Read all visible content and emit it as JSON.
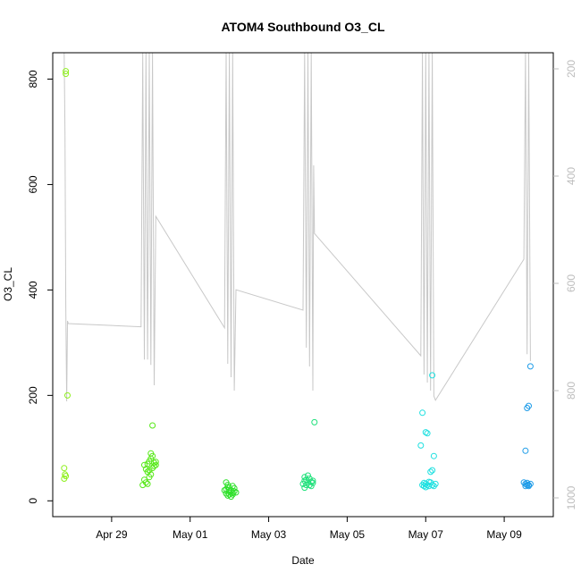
{
  "chart_data": {
    "type": "scatter",
    "title": "ATOM4 Southbound O3_CL",
    "xlabel": "Date",
    "ylabel": "O3_CL",
    "x_range": [
      "2016-04-27T12:00",
      "2016-05-10T06:00"
    ],
    "ylim": [
      -30,
      850
    ],
    "y_ticks": [
      0,
      200,
      400,
      600,
      800
    ],
    "x_ticks": [
      {
        "date": "2016-04-29",
        "label": "Apr 29"
      },
      {
        "date": "2016-05-01",
        "label": "May 01"
      },
      {
        "date": "2016-05-03",
        "label": "May 03"
      },
      {
        "date": "2016-05-05",
        "label": "May 05"
      },
      {
        "date": "2016-05-07",
        "label": "May 07"
      },
      {
        "date": "2016-05-09",
        "label": "May 09"
      }
    ],
    "secondary_axis": {
      "side": "right",
      "color": "#bdbdbd",
      "reversed": true,
      "ylim": [
        1035,
        170
      ],
      "ticks": [
        200,
        400,
        600,
        800,
        1000
      ],
      "line_color": "#c8c8c8",
      "line": [
        [
          "2016-04-27T19:00",
          170
        ],
        [
          "2016-04-27T19:30",
          320
        ],
        [
          "2016-04-27T20:00",
          640
        ],
        [
          "2016-04-27T20:30",
          820
        ],
        [
          "2016-04-27T21:00",
          670
        ],
        [
          "2016-04-27T21:30",
          675
        ],
        [
          "2016-04-29T18:00",
          681
        ],
        [
          "2016-04-29T19:00",
          170
        ],
        [
          "2016-04-29T20:00",
          742
        ],
        [
          "2016-04-29T21:00",
          170
        ],
        [
          "2016-04-29T22:00",
          742
        ],
        [
          "2016-04-29T23:00",
          170
        ],
        [
          "2016-04-30T00:00",
          752
        ],
        [
          "2016-04-30T01:00",
          170
        ],
        [
          "2016-04-30T02:00",
          790
        ],
        [
          "2016-04-30T03:00",
          475
        ],
        [
          "2016-05-01T21:00",
          683
        ],
        [
          "2016-05-01T22:00",
          170
        ],
        [
          "2016-05-01T23:00",
          750
        ],
        [
          "2016-05-02T00:00",
          170
        ],
        [
          "2016-05-02T01:00",
          775
        ],
        [
          "2016-05-02T02:00",
          170
        ],
        [
          "2016-05-02T03:00",
          800
        ],
        [
          "2016-05-02T04:00",
          612
        ],
        [
          "2016-05-03T21:00",
          650
        ],
        [
          "2016-05-03T22:00",
          170
        ],
        [
          "2016-05-03T23:00",
          720
        ],
        [
          "2016-05-04T00:00",
          170
        ],
        [
          "2016-05-04T01:00",
          755
        ],
        [
          "2016-05-04T02:00",
          170
        ],
        [
          "2016-05-04T03:00",
          800
        ],
        [
          "2016-05-04T03:30",
          380
        ],
        [
          "2016-05-04T04:00",
          507
        ],
        [
          "2016-05-06T21:00",
          735
        ],
        [
          "2016-05-06T22:00",
          170
        ],
        [
          "2016-05-06T23:00",
          770
        ],
        [
          "2016-05-07T00:00",
          170
        ],
        [
          "2016-05-07T01:00",
          785
        ],
        [
          "2016-05-07T02:00",
          170
        ],
        [
          "2016-05-07T03:00",
          800
        ],
        [
          "2016-05-07T04:00",
          170
        ],
        [
          "2016-05-07T05:00",
          810
        ],
        [
          "2016-05-07T06:00",
          818
        ],
        [
          "2016-05-09T12:00",
          555
        ],
        [
          "2016-05-09T13:00",
          170
        ],
        [
          "2016-05-09T14:00",
          732
        ],
        [
          "2016-05-09T15:00",
          170
        ],
        [
          "2016-05-09T16:00",
          745
        ]
      ]
    },
    "series": [
      {
        "color": "#8ef01c",
        "points": [
          [
            "2016-04-27T20:00",
            815
          ],
          [
            "2016-04-27T20:00",
            810
          ],
          [
            "2016-04-27T21:00",
            200
          ],
          [
            "2016-04-27T19:00",
            62
          ],
          [
            "2016-04-27T19:30",
            50
          ],
          [
            "2016-04-27T19:00",
            42
          ],
          [
            "2016-04-27T20:00",
            47
          ]
        ]
      },
      {
        "color": "#56e817",
        "points": [
          [
            "2016-04-30T01:00",
            143
          ],
          [
            "2016-04-29T20:00",
            68
          ],
          [
            "2016-04-29T22:00",
            70
          ],
          [
            "2016-04-29T23:00",
            75
          ],
          [
            "2016-04-30T00:00",
            80
          ],
          [
            "2016-04-30T01:00",
            85
          ],
          [
            "2016-04-30T02:00",
            72
          ],
          [
            "2016-04-30T03:00",
            68
          ],
          [
            "2016-04-29T21:00",
            60
          ],
          [
            "2016-04-29T22:00",
            55
          ],
          [
            "2016-04-30T00:00",
            50
          ],
          [
            "2016-04-29T23:00",
            45
          ],
          [
            "2016-04-29T20:00",
            40
          ],
          [
            "2016-04-29T21:00",
            35
          ],
          [
            "2016-04-29T22:00",
            32
          ],
          [
            "2016-04-30T01:00",
            62
          ],
          [
            "2016-04-30T02:00",
            66
          ],
          [
            "2016-04-29T19:00",
            30
          ],
          [
            "2016-04-30T00:00",
            90
          ],
          [
            "2016-04-29T23:00",
            58
          ],
          [
            "2016-04-30T03:00",
            74
          ]
        ]
      },
      {
        "color": "#2ee02a",
        "points": [
          [
            "2016-05-01T22:00",
            35
          ],
          [
            "2016-05-01T23:00",
            30
          ],
          [
            "2016-05-02T00:00",
            25
          ],
          [
            "2016-05-02T01:00",
            20
          ],
          [
            "2016-05-02T02:00",
            15
          ],
          [
            "2016-05-02T03:00",
            18
          ],
          [
            "2016-05-01T22:00",
            22
          ],
          [
            "2016-05-01T23:00",
            10
          ],
          [
            "2016-05-02T00:00",
            12
          ],
          [
            "2016-05-02T01:00",
            8
          ],
          [
            "2016-05-02T02:00",
            28
          ],
          [
            "2016-05-02T03:00",
            24
          ],
          [
            "2016-05-01T21:00",
            20
          ],
          [
            "2016-05-02T04:00",
            16
          ],
          [
            "2016-05-01T22:00",
            14
          ],
          [
            "2016-05-02T00:00",
            18
          ],
          [
            "2016-05-02T02:00",
            12
          ],
          [
            "2016-05-01T23:00",
            26
          ]
        ]
      },
      {
        "color": "#1ee07a",
        "points": [
          [
            "2016-05-04T04:00",
            149
          ],
          [
            "2016-05-03T22:00",
            45
          ],
          [
            "2016-05-03T23:00",
            40
          ],
          [
            "2016-05-04T00:00",
            35
          ],
          [
            "2016-05-04T01:00",
            30
          ],
          [
            "2016-05-04T02:00",
            28
          ],
          [
            "2016-05-04T03:00",
            38
          ],
          [
            "2016-05-03T21:00",
            32
          ],
          [
            "2016-05-03T22:00",
            25
          ],
          [
            "2016-05-04T00:00",
            48
          ],
          [
            "2016-05-04T01:00",
            42
          ],
          [
            "2016-05-04T02:00",
            36
          ],
          [
            "2016-05-03T23:00",
            30
          ],
          [
            "2016-05-04T03:00",
            34
          ],
          [
            "2016-05-03T22:00",
            38
          ]
        ]
      },
      {
        "color": "#1ee0e0",
        "points": [
          [
            "2016-05-07T04:00",
            238
          ],
          [
            "2016-05-06T22:00",
            167
          ],
          [
            "2016-05-07T00:00",
            130
          ],
          [
            "2016-05-07T01:00",
            128
          ],
          [
            "2016-05-06T21:00",
            105
          ],
          [
            "2016-05-07T05:00",
            85
          ],
          [
            "2016-05-07T04:00",
            58
          ],
          [
            "2016-05-07T03:00",
            55
          ],
          [
            "2016-05-06T22:00",
            30
          ],
          [
            "2016-05-06T23:00",
            28
          ],
          [
            "2016-05-07T00:00",
            32
          ],
          [
            "2016-05-07T01:00",
            30
          ],
          [
            "2016-05-07T02:00",
            28
          ],
          [
            "2016-05-07T03:00",
            35
          ],
          [
            "2016-05-07T04:00",
            30
          ],
          [
            "2016-05-07T05:00",
            28
          ],
          [
            "2016-05-07T06:00",
            32
          ],
          [
            "2016-05-07T02:00",
            36
          ],
          [
            "2016-05-07T00:00",
            26
          ],
          [
            "2016-05-06T23:00",
            34
          ]
        ]
      },
      {
        "color": "#1e9ce8",
        "points": [
          [
            "2016-05-09T16:00",
            255
          ],
          [
            "2016-05-09T15:00",
            180
          ],
          [
            "2016-05-09T14:00",
            176
          ],
          [
            "2016-05-09T13:00",
            95
          ],
          [
            "2016-05-09T12:00",
            35
          ],
          [
            "2016-05-09T13:00",
            32
          ],
          [
            "2016-05-09T14:00",
            30
          ],
          [
            "2016-05-09T15:00",
            28
          ],
          [
            "2016-05-09T16:00",
            32
          ],
          [
            "2016-05-09T13:00",
            28
          ],
          [
            "2016-05-09T14:00",
            34
          ],
          [
            "2016-05-09T15:00",
            30
          ]
        ]
      }
    ]
  }
}
